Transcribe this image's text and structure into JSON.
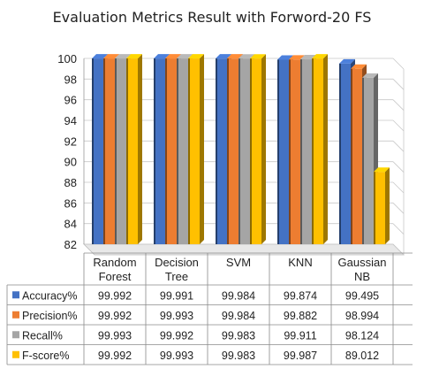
{
  "chart_data": {
    "type": "bar",
    "title": "Evaluation Metrics Result with Forword-20 FS",
    "xlabel": "",
    "ylabel": "",
    "ylim": [
      82,
      100
    ],
    "yticks": [
      "100",
      "98",
      "96",
      "94",
      "92",
      "90",
      "88",
      "86",
      "84",
      "82"
    ],
    "categories": [
      [
        "Random",
        "Forest"
      ],
      [
        "Decision",
        "Tree"
      ],
      [
        "SVM"
      ],
      [
        "KNN"
      ],
      [
        "Gaussian",
        "NB"
      ]
    ],
    "series": [
      {
        "name": "Accuracy%",
        "color": "#4472c4",
        "values": [
          99.992,
          99.991,
          99.984,
          99.874,
          99.495
        ],
        "labels": [
          "99.992",
          "99.991",
          "99.984",
          "99.874",
          "99.495"
        ]
      },
      {
        "name": "Precision%",
        "color": "#ed7d31",
        "values": [
          99.992,
          99.993,
          99.984,
          99.882,
          98.994
        ],
        "labels": [
          "99.992",
          "99.993",
          "99.984",
          "99.882",
          "98.994"
        ]
      },
      {
        "name": "Recall%",
        "color": "#a5a5a5",
        "values": [
          99.993,
          99.992,
          99.983,
          99.911,
          98.124
        ],
        "labels": [
          "99.993",
          "99.992",
          "99.983",
          "99.911",
          "98.124"
        ]
      },
      {
        "name": "F-score%",
        "color": "#ffc000",
        "values": [
          99.992,
          99.993,
          99.983,
          99.987,
          89.012
        ],
        "labels": [
          "99.992",
          "99.993",
          "99.983",
          "99.987",
          "89.012"
        ]
      }
    ],
    "grid": true,
    "legend": "table-left"
  }
}
